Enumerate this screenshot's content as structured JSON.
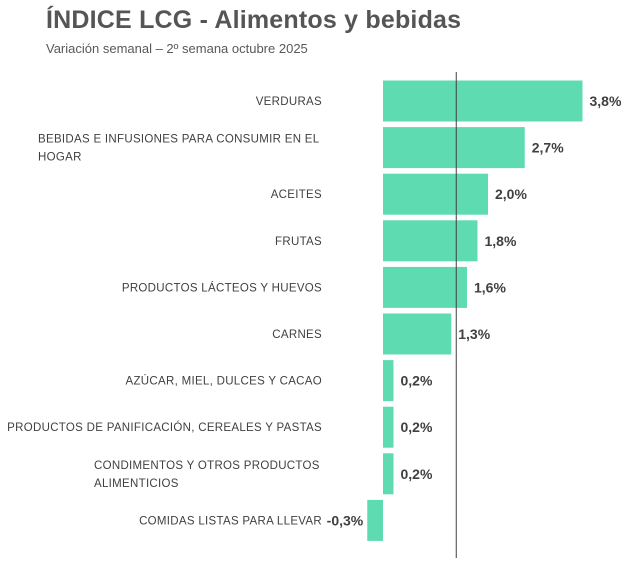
{
  "header": {
    "title": "ÍNDICE LCG - Alimentos y bebidas",
    "subtitle": "Variación semanal – 2º semana octubre 2025"
  },
  "colors": {
    "bar": "#5EDBB1",
    "axis": "#404040",
    "text": "#404040"
  },
  "chart_data": {
    "type": "bar",
    "orientation": "horizontal",
    "categories": [
      [
        "VERDURAS"
      ],
      [
        "BEBIDAS E INFUSIONES PARA CONSUMIR EN EL",
        "HOGAR"
      ],
      [
        "ACEITES"
      ],
      [
        "FRUTAS"
      ],
      [
        "PRODUCTOS LÁCTEOS Y HUEVOS"
      ],
      [
        "CARNES"
      ],
      [
        "AZÚCAR, MIEL, DULCES Y CACAO"
      ],
      [
        "PRODUCTOS DE PANIFICACIÓN, CEREALES Y PASTAS"
      ],
      [
        "CONDIMENTOS Y OTROS PRODUCTOS",
        "ALIMENTICIOS"
      ],
      [
        "COMIDAS LISTAS PARA LLEVAR"
      ]
    ],
    "values": [
      3.8,
      2.7,
      2.0,
      1.8,
      1.6,
      1.3,
      0.2,
      0.2,
      0.2,
      -0.3
    ],
    "value_labels": [
      "3,8%",
      "2,7%",
      "2,0%",
      "1,8%",
      "1,6%",
      "1,3%",
      "0,2%",
      "0,2%",
      "0,2%",
      "-0,3%"
    ],
    "reference_line": 1.3,
    "xlim": [
      -0.3,
      3.8
    ],
    "grid": false,
    "legend": "none"
  }
}
